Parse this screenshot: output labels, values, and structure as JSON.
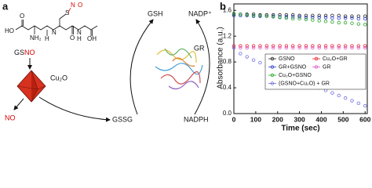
{
  "panel_a": {
    "panel_label": "a",
    "molecule": {
      "s": "S",
      "n": "N",
      "o_nitroso": "O",
      "ho": "HO",
      "nh2": "NH₂",
      "o1": "O",
      "o2": "O",
      "oh": "OH",
      "h1": "H",
      "h2": "H",
      "n1": "N",
      "n2": "N"
    },
    "gsno_black": "GS",
    "gsno_red": "NO",
    "catalyst": "Cu₂O",
    "no": "NO",
    "gssg": "GSSG",
    "gsh": "GSH",
    "nadp": "NADP⁺",
    "gr": "GR",
    "nadph": "NADPH"
  },
  "chart_data": {
    "type": "scatter",
    "panel_label": "b",
    "x_label": "Time (sec)",
    "y_label": "Absorbance (a.u.)",
    "x": [
      0,
      30,
      60,
      90,
      120,
      150,
      180,
      210,
      240,
      270,
      300,
      330,
      360,
      390,
      420,
      450,
      480,
      510,
      540,
      570,
      600
    ],
    "series": [
      {
        "name": "GSNO",
        "color": "#222222",
        "values": [
          1.54,
          1.54,
          1.54,
          1.54,
          1.53,
          1.53,
          1.53,
          1.53,
          1.53,
          1.53,
          1.52,
          1.52,
          1.52,
          1.52,
          1.52,
          1.52,
          1.52,
          1.51,
          1.51,
          1.51,
          1.51
        ]
      },
      {
        "name": "Cu₂O+GR",
        "color": "#e8202a",
        "values": [
          1.05,
          1.05,
          1.05,
          1.05,
          1.05,
          1.05,
          1.05,
          1.05,
          1.05,
          1.05,
          1.05,
          1.05,
          1.05,
          1.05,
          1.05,
          1.05,
          1.05,
          1.05,
          1.05,
          1.05,
          1.05
        ]
      },
      {
        "name": "GR+GSNO",
        "color": "#2b3fcf",
        "values": [
          1.52,
          1.52,
          1.52,
          1.51,
          1.51,
          1.51,
          1.51,
          1.5,
          1.5,
          1.5,
          1.5,
          1.49,
          1.49,
          1.49,
          1.49,
          1.48,
          1.48,
          1.48,
          1.48,
          1.47,
          1.47
        ]
      },
      {
        "name": "GR",
        "color": "#e055c8",
        "values": [
          1.02,
          1.02,
          1.02,
          1.02,
          1.02,
          1.02,
          1.02,
          1.02,
          1.02,
          1.02,
          1.02,
          1.02,
          1.02,
          1.02,
          1.02,
          1.02,
          1.02,
          1.02,
          1.02,
          1.02,
          1.02
        ]
      },
      {
        "name": "Cu₂O+GSNO",
        "color": "#2aa52a",
        "values": [
          1.55,
          1.54,
          1.53,
          1.52,
          1.52,
          1.51,
          1.5,
          1.49,
          1.48,
          1.47,
          1.47,
          1.46,
          1.45,
          1.44,
          1.43,
          1.42,
          1.41,
          1.41,
          1.4,
          1.39,
          1.38
        ]
      },
      {
        "name": "(GSNO+Cu₂O) + GR",
        "color": "#6f6fe0",
        "values": [
          1.02,
          0.93,
          0.88,
          0.83,
          0.79,
          0.74,
          0.7,
          0.65,
          0.61,
          0.57,
          0.52,
          0.48,
          0.44,
          0.4,
          0.36,
          0.32,
          0.28,
          0.24,
          0.2,
          0.16,
          0.12
        ]
      }
    ],
    "xlim": [
      0,
      610
    ],
    "xticks": [
      0,
      100,
      200,
      300,
      400,
      500,
      600
    ],
    "ylim": [
      0,
      1.7
    ],
    "yticks": [
      {
        "value": 0,
        "label": "0.0"
      },
      {
        "value": 0.4,
        "label": "0.4"
      },
      {
        "value": 0.8,
        "label": "0.8"
      },
      {
        "value": 1.2,
        "label": "1.2"
      },
      {
        "value": 1.6,
        "label": "1.6"
      }
    ]
  }
}
